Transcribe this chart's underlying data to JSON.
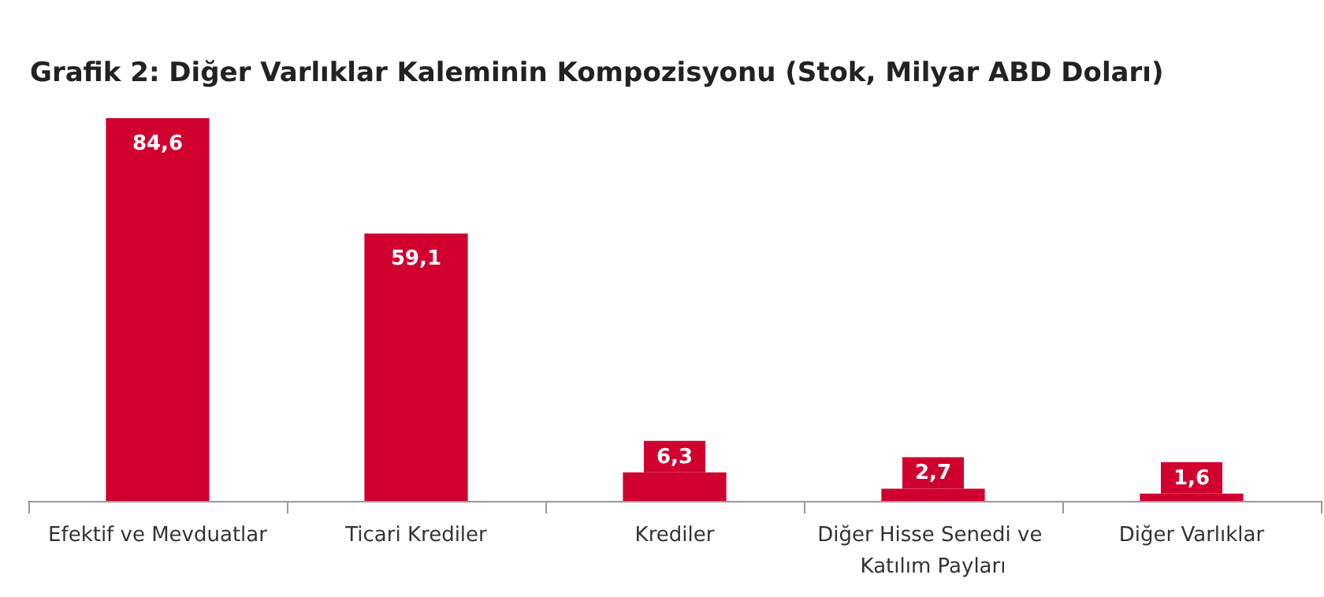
{
  "chart_data": {
    "type": "bar",
    "title": "Grafik 2: Diğer Varlıklar Kaleminin Kompozisyonu (Stok, Milyar ABD Doları)",
    "categories": [
      "Efektif ve Mevduatlar",
      "Ticari Krediler",
      "Krediler",
      "Diğer Hisse Senedi ve Katılım Payları",
      "Diğer Varlıklar"
    ],
    "values": [
      84.6,
      59.1,
      6.3,
      2.7,
      1.6
    ],
    "value_labels": [
      "84,6",
      "59,1",
      "6,3",
      "2,7",
      "1,6"
    ],
    "color": "#d0002f"
  }
}
